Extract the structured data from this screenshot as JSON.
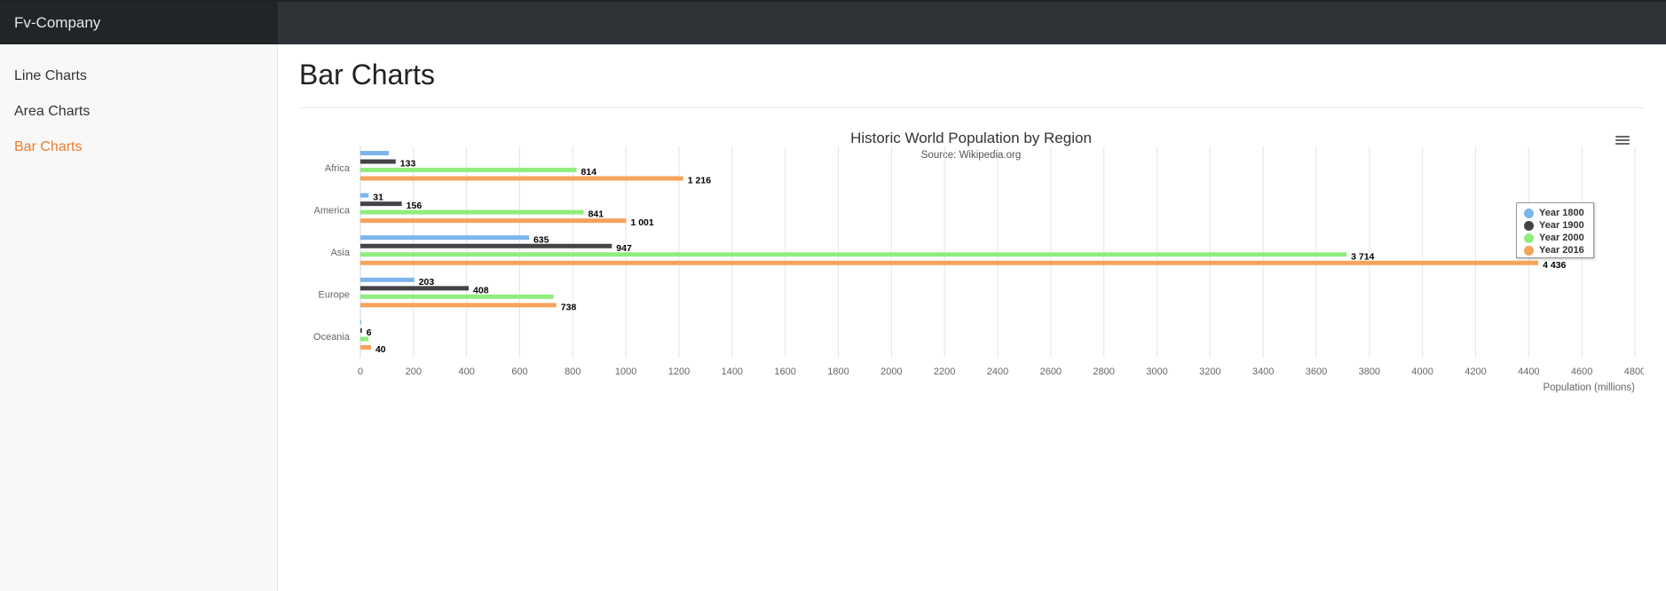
{
  "app": {
    "brand": "Fv-Company"
  },
  "sidebar": {
    "items": [
      {
        "label": "Line Charts",
        "active": false
      },
      {
        "label": "Area Charts",
        "active": false
      },
      {
        "label": "Bar Charts",
        "active": true
      }
    ]
  },
  "page": {
    "title": "Bar Charts"
  },
  "colors": {
    "accent": "#f07b2a"
  },
  "chart_data": {
    "type": "bar",
    "orientation": "horizontal",
    "title": "Historic World Population by Region",
    "subtitle": "Source: Wikipedia.org",
    "xlabel": "Population (millions)",
    "ylabel": "",
    "categories": [
      "Africa",
      "America",
      "Asia",
      "Europe",
      "Oceania"
    ],
    "series": [
      {
        "name": "Year 1800",
        "color": "#7cb5ec",
        "values": [
          107,
          31,
          635,
          203,
          2
        ],
        "labels": [
          "",
          "31",
          "635",
          "203",
          ""
        ]
      },
      {
        "name": "Year 1900",
        "color": "#434348",
        "values": [
          133,
          156,
          947,
          408,
          6
        ],
        "labels": [
          "133",
          "156",
          "947",
          "408",
          "6"
        ]
      },
      {
        "name": "Year 2000",
        "color": "#90ed7d",
        "values": [
          814,
          841,
          3714,
          727,
          31
        ],
        "labels": [
          "814",
          "841",
          "3 714",
          "",
          ""
        ]
      },
      {
        "name": "Year 2016",
        "color": "#f7a35c",
        "values": [
          1216,
          1001,
          4436,
          738,
          40
        ],
        "labels": [
          "1 216",
          "1 001",
          "4 436",
          "738",
          "40"
        ]
      }
    ],
    "xlim": [
      0,
      4800
    ],
    "ticks": [
      "0",
      "200",
      "400",
      "600",
      "800",
      "1000",
      "1200",
      "1400",
      "1600",
      "1800",
      "2000",
      "2200",
      "2400",
      "2600",
      "2800",
      "3000",
      "3200",
      "3400",
      "3600",
      "3800",
      "4000",
      "4200",
      "4400",
      "4600",
      "4800"
    ],
    "grid": true,
    "legend_position": "top-right"
  }
}
